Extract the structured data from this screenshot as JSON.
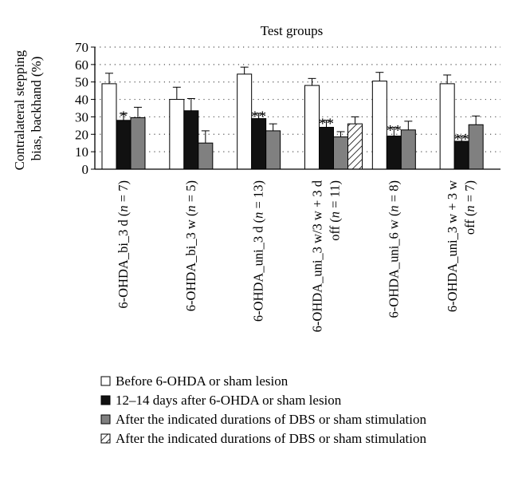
{
  "chart_data": {
    "type": "bar",
    "title": "Test groups",
    "ylabel_lines": [
      "Contralateral stepping",
      "bias, backhand (%)"
    ],
    "ylim": [
      0,
      70
    ],
    "yticks": [
      0,
      10,
      20,
      30,
      40,
      50,
      60,
      70
    ],
    "grid": "horizontal dotted",
    "legend_position": "bottom",
    "categories": [
      {
        "lines": [
          {
            "text": "6-OHDA_bi_3 d (",
            "n": "n",
            "rest": " = 7)"
          }
        ]
      },
      {
        "lines": [
          {
            "text": "6-OHDA_bi_3 w (",
            "n": "n",
            "rest": " = 5)"
          }
        ]
      },
      {
        "lines": [
          {
            "text": "6-OHDA_uni_3 d (",
            "n": "n",
            "rest": " = 13)"
          }
        ]
      },
      {
        "lines": [
          {
            "text": "6-OHDA_uni_3 w/3 w + 3 d",
            "n": "",
            "rest": ""
          },
          {
            "text": "off (",
            "n": "n",
            "rest": " = 11)"
          }
        ]
      },
      {
        "lines": [
          {
            "text": "6-OHDA_uni_6 w (",
            "n": "n",
            "rest": " = 8)"
          }
        ]
      },
      {
        "lines": [
          {
            "text": "6-OHDA_uni_3 w + 3 w",
            "n": "",
            "rest": ""
          },
          {
            "text": "off (",
            "n": "n",
            "rest": " = 7)"
          }
        ]
      }
    ],
    "series": [
      {
        "name": "Before 6-OHDA or sham lesion",
        "fill": "#ffffff",
        "pattern": "none",
        "values": [
          49,
          40,
          54.5,
          48,
          50.5,
          49
        ],
        "errors": [
          6,
          7,
          4,
          4,
          5,
          5
        ]
      },
      {
        "name": "12–14 days after 6-OHDA or sham lesion",
        "fill": "#111111",
        "pattern": "none",
        "values": [
          28,
          33.5,
          29,
          24,
          19,
          16
        ],
        "errors": [
          4,
          7,
          3,
          4,
          5,
          3
        ],
        "annotations": [
          "*",
          "",
          "**",
          "**",
          "**",
          "**"
        ]
      },
      {
        "name": "After the indicated durations of DBS or sham stimulation",
        "fill": "#808080",
        "pattern": "none",
        "values": [
          29.5,
          15,
          22,
          18.5,
          22.5,
          25.5
        ],
        "errors": [
          6,
          7,
          4,
          3,
          5,
          5
        ]
      },
      {
        "name": "After the indicated durations of DBS or sham stimulation",
        "fill": "#ffffff",
        "pattern": "hatch",
        "values": [
          null,
          null,
          null,
          26,
          null,
          null
        ],
        "errors": [
          null,
          null,
          null,
          4,
          null,
          null
        ]
      }
    ]
  }
}
